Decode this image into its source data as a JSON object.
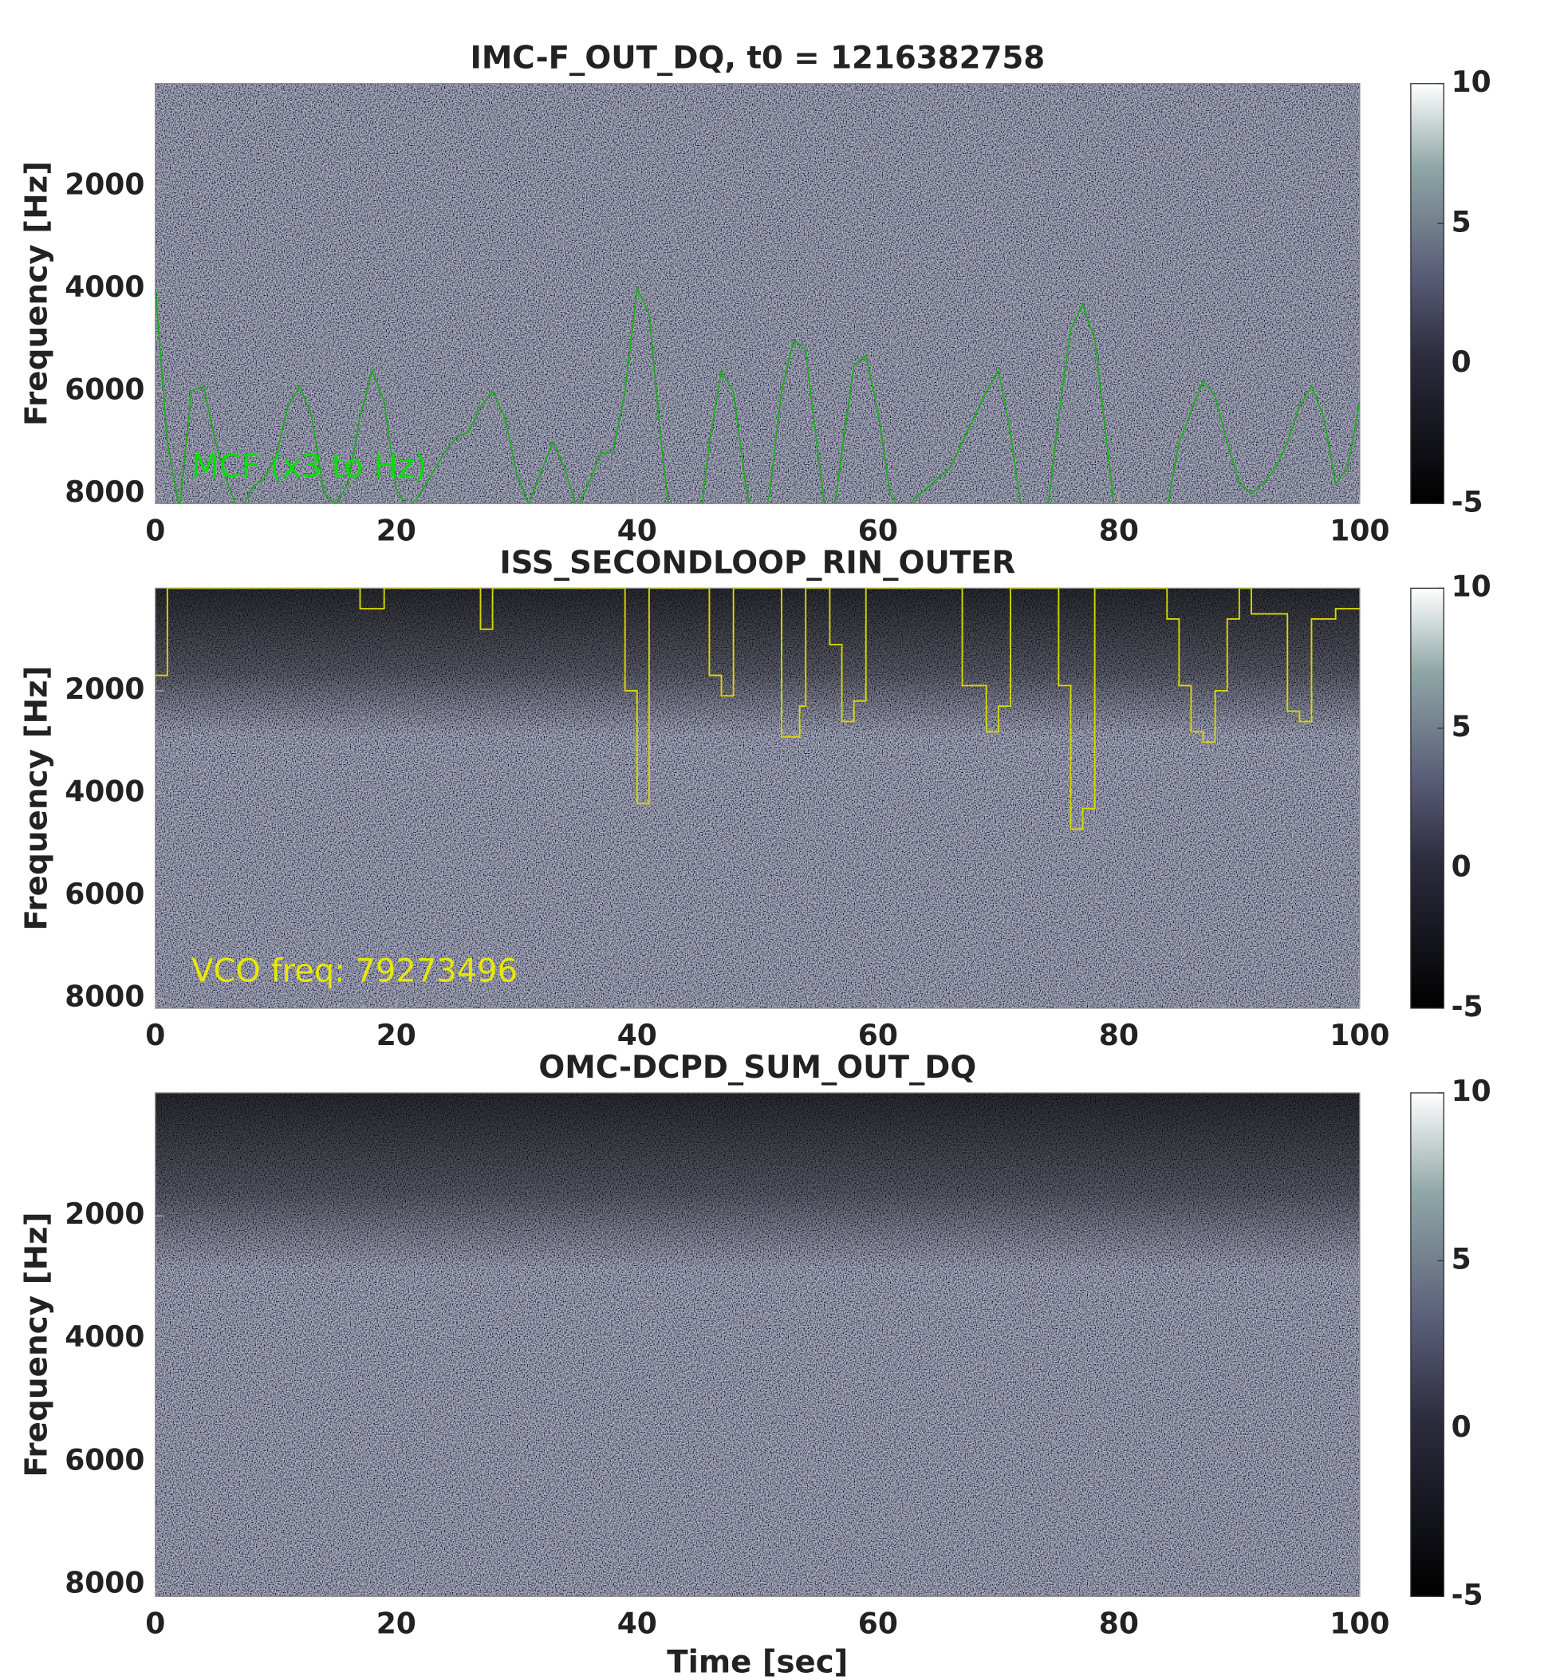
{
  "chart_data": [
    {
      "type": "spectrogram",
      "title": "IMC-F_OUT_DQ, t0 = 1216382758",
      "ylabel": "Frequency [Hz]",
      "xlim": [
        0,
        100
      ],
      "xticks": [
        0,
        20,
        40,
        60,
        80,
        100
      ],
      "ylim": [
        0,
        8192
      ],
      "yticks": [
        2000,
        4000,
        6000,
        8000
      ],
      "y_reversed": true,
      "colorbar": {
        "lim": [
          -5,
          10
        ],
        "ticks": [
          -5,
          0,
          5,
          10
        ]
      },
      "annotation": {
        "text": "MCF (x3 to Hz)",
        "color": "#00e000"
      },
      "series": [
        {
          "color": "#1faa1f",
          "step": false,
          "x": [
            0,
            1,
            2,
            3,
            4,
            5,
            6,
            7,
            8,
            9,
            10,
            11,
            12,
            13,
            14,
            15,
            16,
            17,
            18,
            19,
            20,
            21,
            22,
            23,
            24,
            25,
            26,
            27,
            28,
            29,
            30,
            31,
            32,
            33,
            34,
            35,
            36,
            37,
            38,
            39,
            40,
            41,
            42,
            43,
            44,
            45,
            46,
            47,
            48,
            49,
            50,
            51,
            52,
            53,
            54,
            55,
            56,
            57,
            58,
            59,
            60,
            61,
            62,
            63,
            64,
            65,
            66,
            67,
            68,
            69,
            70,
            71,
            72,
            73,
            74,
            75,
            76,
            77,
            78,
            79,
            80,
            81,
            82,
            83,
            84,
            85,
            86,
            87,
            88,
            89,
            90,
            91,
            92,
            93,
            94,
            95,
            96,
            97,
            98,
            99,
            100
          ],
          "values": [
            4000,
            7000,
            8300,
            6000,
            5900,
            7000,
            7800,
            8400,
            7900,
            7700,
            7300,
            6300,
            5900,
            6500,
            8000,
            8200,
            7800,
            6500,
            5600,
            6200,
            7900,
            8300,
            8000,
            7600,
            7200,
            6900,
            6800,
            6300,
            6000,
            6500,
            7600,
            8200,
            7600,
            7000,
            7500,
            8300,
            7800,
            7200,
            7200,
            6000,
            4000,
            4500,
            7000,
            9000,
            9000,
            9000,
            7000,
            5600,
            6000,
            7800,
            9000,
            8000,
            6000,
            5000,
            5200,
            7200,
            9000,
            7200,
            5500,
            5300,
            6400,
            8000,
            8400,
            8100,
            7900,
            7700,
            7500,
            7000,
            6500,
            6000,
            5600,
            6800,
            8500,
            9000,
            8500,
            6500,
            4800,
            4300,
            5000,
            7000,
            9000,
            8200,
            8500,
            9000,
            8300,
            7000,
            6400,
            5800,
            6100,
            7000,
            7800,
            8000,
            7800,
            7500,
            7000,
            6300,
            5900,
            6500,
            7800,
            7500,
            6200
          ]
        }
      ]
    },
    {
      "type": "spectrogram",
      "title": "ISS_SECONDLOOP_RIN_OUTER",
      "ylabel": "Frequency [Hz]",
      "xlim": [
        0,
        100
      ],
      "xticks": [
        0,
        20,
        40,
        60,
        80,
        100
      ],
      "ylim": [
        0,
        8192
      ],
      "yticks": [
        2000,
        4000,
        6000,
        8000
      ],
      "y_reversed": true,
      "colorbar": {
        "lim": [
          -5,
          10
        ],
        "ticks": [
          -5,
          0,
          5,
          10
        ]
      },
      "annotation": {
        "text": "VCO freq: 79273496",
        "color": "#e8e800"
      },
      "series": [
        {
          "color": "#d8d800",
          "x": [
            0,
            1,
            1,
            17,
            17,
            19,
            19,
            27,
            27,
            28,
            28,
            39,
            39,
            40,
            40,
            41,
            41,
            46,
            46,
            47,
            47,
            48,
            48,
            52,
            52,
            53.5,
            53.5,
            54,
            54,
            56,
            56,
            57,
            57,
            58,
            58,
            59,
            59,
            67,
            67,
            69,
            69,
            70,
            70,
            71,
            71,
            75,
            75,
            76,
            76,
            77,
            77,
            78,
            78,
            84,
            84,
            85,
            85,
            86,
            86,
            87,
            87,
            88,
            88,
            89,
            89,
            90,
            90,
            91,
            91,
            94,
            94,
            95,
            95,
            96,
            96,
            98,
            98,
            100
          ],
          "values": [
            1700,
            1700,
            0,
            0,
            400,
            400,
            0,
            0,
            800,
            800,
            0,
            0,
            2000,
            2000,
            4200,
            4200,
            0,
            0,
            1700,
            1700,
            2100,
            2100,
            0,
            0,
            2900,
            2900,
            2300,
            2300,
            0,
            0,
            1100,
            1100,
            2600,
            2600,
            2200,
            2200,
            0,
            0,
            1900,
            1900,
            2800,
            2800,
            2300,
            2300,
            0,
            0,
            1900,
            1900,
            4700,
            4700,
            4300,
            4300,
            0,
            0,
            600,
            600,
            1900,
            1900,
            2800,
            2800,
            3000,
            3000,
            2000,
            2000,
            600,
            600,
            0,
            0,
            500,
            500,
            2400,
            2400,
            2600,
            2600,
            600,
            600,
            400,
            400
          ]
        }
      ]
    },
    {
      "type": "spectrogram",
      "title": "OMC-DCPD_SUM_OUT_DQ",
      "ylabel": "Frequency [Hz]",
      "xlabel": "Time [sec]",
      "xlim": [
        0,
        100
      ],
      "xticks": [
        0,
        20,
        40,
        60,
        80,
        100
      ],
      "ylim": [
        0,
        8192
      ],
      "yticks": [
        2000,
        4000,
        6000,
        8000
      ],
      "y_reversed": true,
      "colorbar": {
        "lim": [
          -5,
          10
        ],
        "ticks": [
          -5,
          0,
          5,
          10
        ]
      }
    }
  ]
}
